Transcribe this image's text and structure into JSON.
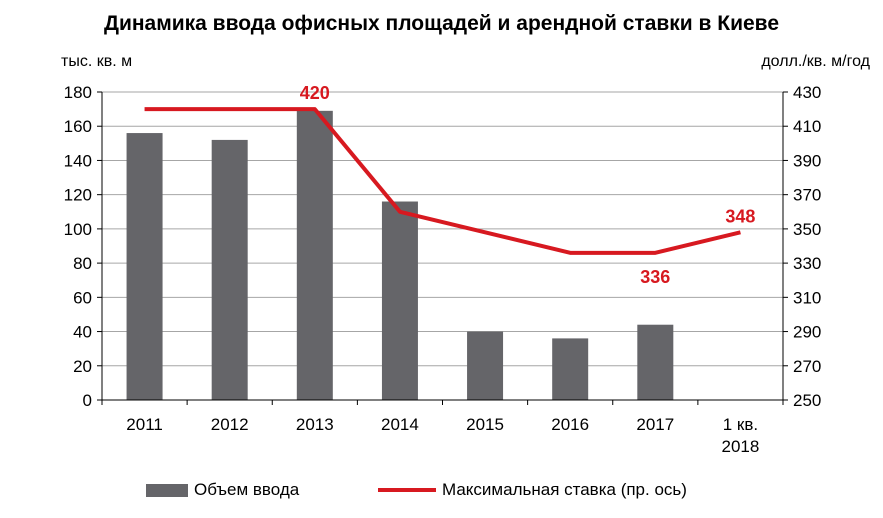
{
  "chart_data": {
    "type": "bar",
    "title": "Динамика ввода офисных площадей и арендной ставки в Киеве",
    "ylabel_left": "тыс. кв. м",
    "ylabel_right": "долл./кв. м/год",
    "categories": [
      "2011",
      "2012",
      "2013",
      "2014",
      "2015",
      "2016",
      "2017",
      "1 кв. 2018"
    ],
    "category_lines": [
      [
        "2011"
      ],
      [
        "2012"
      ],
      [
        "2013"
      ],
      [
        "2014"
      ],
      [
        "2015"
      ],
      [
        "2016"
      ],
      [
        "2017"
      ],
      [
        "1 кв.",
        "2018"
      ]
    ],
    "ylim_left": [
      0,
      180
    ],
    "yticks_left": [
      "0",
      "20",
      "40",
      "60",
      "80",
      "100",
      "120",
      "140",
      "160",
      "180"
    ],
    "ylim_right": [
      250,
      430
    ],
    "yticks_right": [
      "250",
      "270",
      "290",
      "310",
      "330",
      "350",
      "370",
      "390",
      "410",
      "430"
    ],
    "grid": true,
    "series": [
      {
        "name": "Объем ввода",
        "type": "bar",
        "axis": "left",
        "color": "#656569",
        "values": [
          156,
          152,
          169,
          116,
          40,
          36,
          44,
          null
        ]
      },
      {
        "name": "Максимальная ставка (пр. ось)",
        "type": "line",
        "axis": "right",
        "color": "#d71920",
        "values": [
          420,
          420,
          420,
          360,
          348,
          336,
          336,
          348
        ]
      }
    ],
    "annotations": [
      {
        "text": "420",
        "category_index": 2,
        "position": "above"
      },
      {
        "text": "336",
        "category_index": 6,
        "position": "below"
      },
      {
        "text": "348",
        "category_index": 7,
        "position": "above"
      }
    ],
    "legend_position": "bottom"
  }
}
